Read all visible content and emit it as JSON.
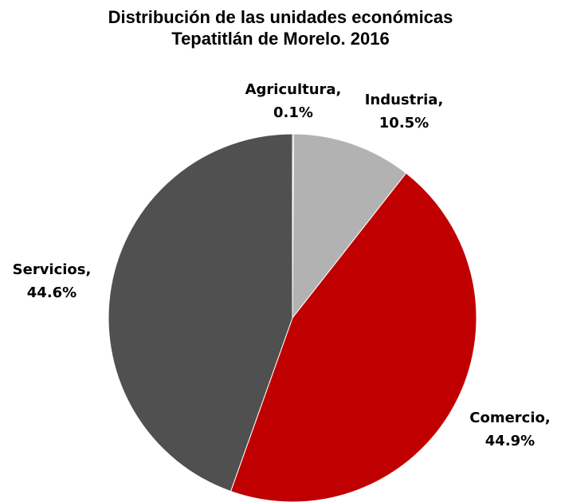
{
  "chart_data": {
    "type": "pie",
    "title": [
      "Distribución de las unidades económicas",
      "Tepatitlán de Morelo. 2016"
    ],
    "slices": [
      {
        "name": "Agricultura",
        "value": 0.1,
        "label": [
          "Agricultura,",
          "0.1%"
        ],
        "color": "#7f7f7f"
      },
      {
        "name": "Industria",
        "value": 10.5,
        "label": [
          "Industria,",
          "10.5%"
        ],
        "color": "#b2b2b2"
      },
      {
        "name": "Comercio",
        "value": 44.9,
        "label": [
          "Comercio,",
          "44.9%"
        ],
        "color": "#c00000"
      },
      {
        "name": "Servicios",
        "value": 44.6,
        "label": [
          "Servicios,",
          "44.6%"
        ],
        "color": "#505050"
      }
    ],
    "start": "12 o'clock",
    "direction": "clockwise",
    "legend": "none"
  }
}
